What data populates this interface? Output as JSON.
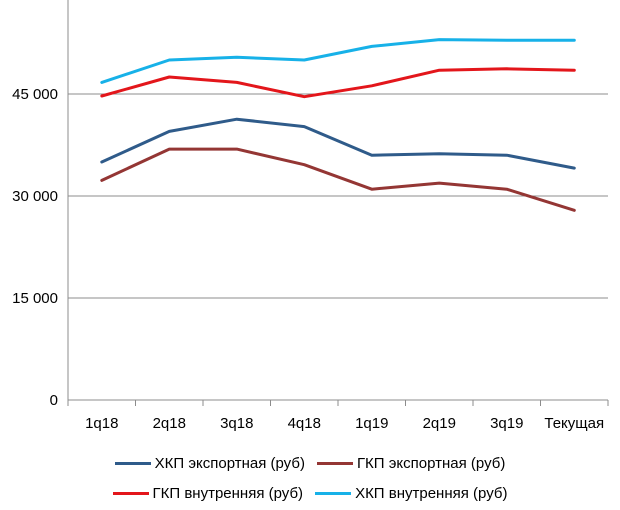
{
  "chart_data": {
    "type": "line",
    "categories": [
      "1q18",
      "2q18",
      "3q18",
      "4q18",
      "1q19",
      "2q19",
      "3q19",
      "Текущая"
    ],
    "ylim": [
      0,
      60000
    ],
    "yticks": [
      0,
      15000,
      30000,
      45000
    ],
    "ytick_labels": [
      "0",
      "15 000",
      "30 000",
      "45 000"
    ],
    "grid": true,
    "legend_position": "bottom",
    "series": [
      {
        "name": "ХКП экспортная (руб)",
        "color": "#2f5b8a",
        "values": [
          35000,
          39500,
          41300,
          40200,
          36000,
          36200,
          36000,
          34100
        ]
      },
      {
        "name": "ГКП экспортная (руб)",
        "color": "#943634",
        "values": [
          32300,
          36900,
          36900,
          34600,
          31000,
          31900,
          31000,
          27900
        ]
      },
      {
        "name": "ГКП внутренняя (руб)",
        "color": "#e3161b",
        "values": [
          44700,
          47500,
          46700,
          44600,
          46200,
          48500,
          48700,
          48500
        ]
      },
      {
        "name": "ХКП внутренняя (руб)",
        "color": "#17b1e8",
        "values": [
          46700,
          50000,
          50400,
          50000,
          52000,
          53000,
          52900,
          52900
        ]
      }
    ]
  }
}
